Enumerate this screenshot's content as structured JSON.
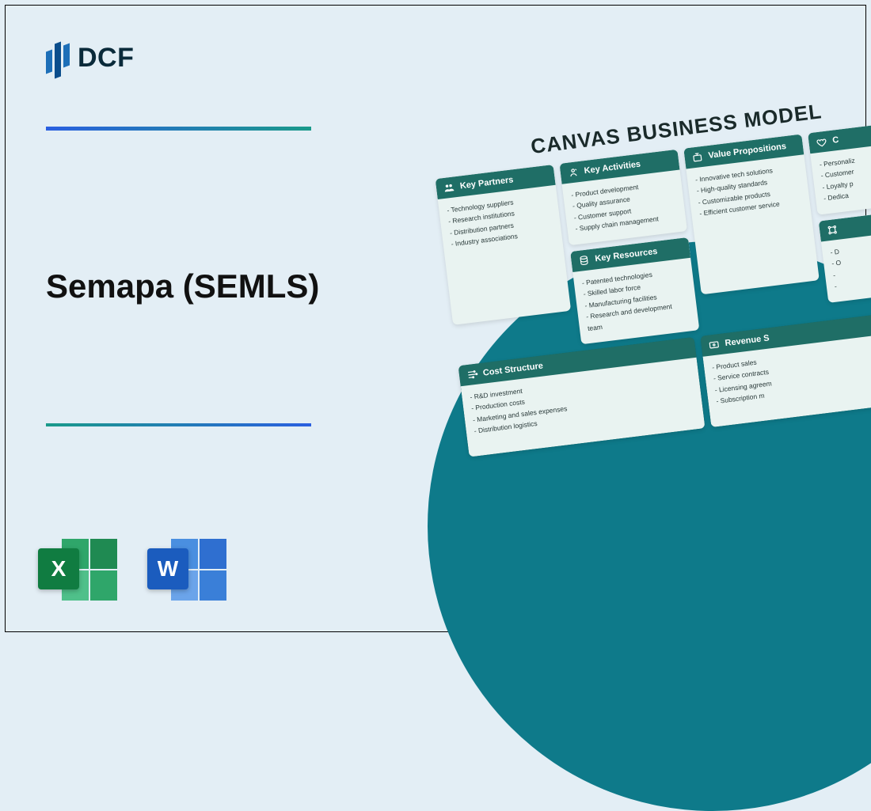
{
  "brand": {
    "name": "DCF"
  },
  "title": "Semapa (SEMLS)",
  "divider_gradient": {
    "from": "#2a5fe0",
    "to": "#1a9a8a"
  },
  "background_color": "#e3eef5",
  "circle_color": "#0e7a8a",
  "file_icons": {
    "excel": {
      "letter": "X",
      "badge_color": "#107c41"
    },
    "word": {
      "letter": "W",
      "badge_color": "#1b5cbe"
    }
  },
  "canvas": {
    "title": "CANVAS BUSINESS MODEL",
    "card_header_color": "#1f6e66",
    "card_bg_color": "#e9f3f1",
    "sections": {
      "key_partners": {
        "label": "Key Partners",
        "items": [
          "Technology suppliers",
          "Research institutions",
          "Distribution partners",
          "Industry associations"
        ]
      },
      "key_activities": {
        "label": "Key Activities",
        "items": [
          "Product development",
          "Quality assurance",
          "Customer support",
          "Supply chain management"
        ]
      },
      "key_resources": {
        "label": "Key Resources",
        "items": [
          "Patented technologies",
          "Skilled labor force",
          "Manufacturing facilities",
          "Research and development team"
        ]
      },
      "value_propositions": {
        "label": "Value Propositions",
        "items": [
          "Innovative tech solutions",
          "High-quality standards",
          "Customizable products",
          "Efficient customer service"
        ]
      },
      "customer_relationships": {
        "label": "C",
        "items": [
          "Personaliz",
          "Customer",
          "Loyalty p",
          "Dedica"
        ]
      },
      "channels": {
        "label": "",
        "items": [
          "D",
          "O",
          "",
          ""
        ]
      },
      "cost_structure": {
        "label": "Cost Structure",
        "items": [
          "R&D investment",
          "Production costs",
          "Marketing and sales expenses",
          "Distribution logistics"
        ]
      },
      "revenue_streams": {
        "label": "Revenue S",
        "items": [
          "Product sales",
          "Service contracts",
          "Licensing agreem",
          "Subscription m"
        ]
      }
    }
  }
}
